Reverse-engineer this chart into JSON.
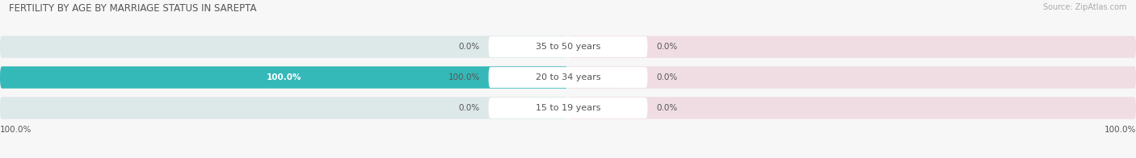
{
  "title": "FERTILITY BY AGE BY MARRIAGE STATUS IN SAREPTA",
  "source": "Source: ZipAtlas.com",
  "age_groups": [
    "15 to 19 years",
    "20 to 34 years",
    "35 to 50 years"
  ],
  "married_values": [
    0.0,
    100.0,
    0.0
  ],
  "unmarried_values": [
    0.0,
    0.0,
    0.0
  ],
  "married_color": "#35b8b8",
  "unmarried_color": "#f4a8bc",
  "bar_bg_left_color": "#dde8e8",
  "bar_bg_right_color": "#f0dde4",
  "row_colors": [
    "#f5f5f5",
    "#eeeeee",
    "#f5f5f5"
  ],
  "title_fontsize": 8.5,
  "label_fontsize": 8,
  "value_fontsize": 7.5,
  "source_fontsize": 7,
  "legend_fontsize": 8,
  "figsize": [
    14.06,
    1.96
  ],
  "dpi": 100,
  "left_bottom_label": "100.0%",
  "right_bottom_label": "100.0%",
  "bg_color": "#f7f7f7"
}
